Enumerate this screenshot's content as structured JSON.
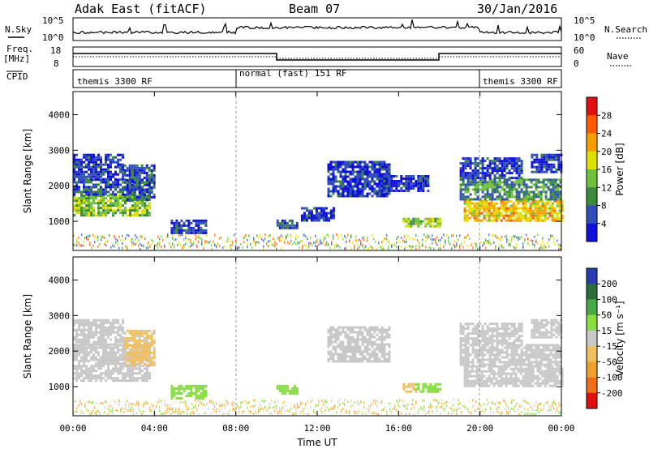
{
  "header": {
    "radar": "Adak East (fitACF)",
    "beam": "Beam 07",
    "date": "30/Jan/2016"
  },
  "nsky_panel": {
    "label_left": "N.Sky",
    "label_right": "N.Search",
    "ticks": [
      "10^5",
      "10^0"
    ]
  },
  "freq_panel": {
    "label_left_1": "Freq.",
    "label_left_2": "[MHz]",
    "label_right": "Nave",
    "ticks_left": [
      "18",
      "8"
    ],
    "ticks_right": [
      "60",
      "0"
    ]
  },
  "cpid_panel": {
    "label": "CPID",
    "segments": [
      {
        "start": 0,
        "end": 8,
        "name": "themis 3300 RF"
      },
      {
        "start": 8,
        "end": 20,
        "name": "normal (fast) 151 RF"
      },
      {
        "start": 20,
        "end": 24,
        "name": "themis 3300 RF"
      }
    ]
  },
  "colorbars": {
    "power": {
      "label": "Power [dB]",
      "ticks": [
        "28",
        "24",
        "20",
        "16",
        "12",
        "8",
        "4"
      ],
      "colors": [
        "#e01010",
        "#ff5a00",
        "#f5a000",
        "#e0e000",
        "#70c040",
        "#3c8a3c",
        "#3050b8",
        "#1010d8"
      ]
    },
    "velocity": {
      "label": "Velocity [m s⁻¹]",
      "ticks": [
        "200",
        "100",
        "50",
        "15",
        "-15",
        "-50",
        "-100",
        "-200"
      ],
      "colors": [
        "#2a3ab0",
        "#2c6e3a",
        "#48a848",
        "#88dd40",
        "#c8c8c8",
        "#f0c060",
        "#f0a030",
        "#f07018",
        "#e01010"
      ]
    }
  },
  "chart_data": [
    {
      "type": "heatmap",
      "quantity": "Power",
      "x": {
        "label": "Time UT",
        "range": [
          0,
          24
        ],
        "ticks": [
          "00:00",
          "04:00",
          "08:00",
          "12:00",
          "16:00",
          "20:00",
          "00:00"
        ]
      },
      "y": {
        "label": "Slant Range [km]",
        "range": [
          180,
          4650
        ],
        "ticks": [
          "1000",
          "2000",
          "3000",
          "4000"
        ]
      },
      "mode_change_times": [
        8,
        20
      ],
      "regions": [
        {
          "t0": 0.0,
          "t1": 3.8,
          "r0": 1150,
          "r1": 1750,
          "level": 14
        },
        {
          "t0": 0.0,
          "t1": 3.8,
          "r0": 1750,
          "r1": 2200,
          "level": 6
        },
        {
          "t0": 0.0,
          "t1": 2.5,
          "r0": 2200,
          "r1": 2900,
          "level": 4
        },
        {
          "t0": 2.5,
          "t1": 4.0,
          "r0": 1600,
          "r1": 2600,
          "level": 6
        },
        {
          "t0": 4.8,
          "t1": 6.5,
          "r0": 650,
          "r1": 1050,
          "level": 4
        },
        {
          "t0": 10.0,
          "t1": 11.0,
          "r0": 800,
          "r1": 1050,
          "level": 6
        },
        {
          "t0": 11.2,
          "t1": 12.8,
          "r0": 1050,
          "r1": 1400,
          "level": 4
        },
        {
          "t0": 12.5,
          "t1": 15.5,
          "r0": 1700,
          "r1": 2700,
          "level": 4
        },
        {
          "t0": 15.0,
          "t1": 17.5,
          "r0": 1850,
          "r1": 2300,
          "level": 4
        },
        {
          "t0": 16.2,
          "t1": 18.0,
          "r0": 850,
          "r1": 1100,
          "level": 16
        },
        {
          "t0": 19.2,
          "t1": 24.0,
          "r0": 1050,
          "r1": 1600,
          "level": 20
        },
        {
          "t0": 19.0,
          "t1": 24.0,
          "r0": 1600,
          "r1": 2200,
          "level": 10
        },
        {
          "t0": 19.0,
          "t1": 22.0,
          "r0": 2200,
          "r1": 2800,
          "level": 4
        },
        {
          "t0": 22.5,
          "t1": 24.0,
          "r0": 2400,
          "r1": 2900,
          "level": 4
        }
      ]
    },
    {
      "type": "heatmap",
      "quantity": "Velocity",
      "x": {
        "label": "Time UT",
        "range": [
          0,
          24
        ],
        "ticks": [
          "00:00",
          "04:00",
          "08:00",
          "12:00",
          "16:00",
          "20:00",
          "00:00"
        ]
      },
      "y": {
        "label": "Slant Range [km]",
        "range": [
          180,
          4650
        ],
        "ticks": [
          "1000",
          "2000",
          "3000",
          "4000"
        ]
      },
      "mode_change_times": [
        8,
        20
      ],
      "regions": [
        {
          "t0": 0.0,
          "t1": 3.8,
          "r0": 1150,
          "r1": 1750,
          "level": 0
        },
        {
          "t0": 0.0,
          "t1": 3.8,
          "r0": 1750,
          "r1": 2200,
          "level": 0
        },
        {
          "t0": 0.0,
          "t1": 2.5,
          "r0": 2200,
          "r1": 2900,
          "level": 0
        },
        {
          "t0": 2.5,
          "t1": 4.0,
          "r0": 1600,
          "r1": 2600,
          "level": -20
        },
        {
          "t0": 4.8,
          "t1": 6.5,
          "r0": 650,
          "r1": 1050,
          "level": 30
        },
        {
          "t0": 10.0,
          "t1": 11.0,
          "r0": 800,
          "r1": 1050,
          "level": 30
        },
        {
          "t0": 12.5,
          "t1": 15.5,
          "r0": 1700,
          "r1": 2700,
          "level": 0
        },
        {
          "t0": 16.2,
          "t1": 16.8,
          "r0": 850,
          "r1": 1100,
          "level": -20
        },
        {
          "t0": 16.8,
          "t1": 18.0,
          "r0": 850,
          "r1": 1100,
          "level": 30
        },
        {
          "t0": 19.2,
          "t1": 24.0,
          "r0": 1050,
          "r1": 1600,
          "level": 0
        },
        {
          "t0": 19.0,
          "t1": 24.0,
          "r0": 1600,
          "r1": 2200,
          "level": 0
        },
        {
          "t0": 19.0,
          "t1": 22.0,
          "r0": 2200,
          "r1": 2800,
          "level": 0
        },
        {
          "t0": 22.5,
          "t1": 24.0,
          "r0": 2400,
          "r1": 2900,
          "level": 0
        }
      ]
    }
  ]
}
